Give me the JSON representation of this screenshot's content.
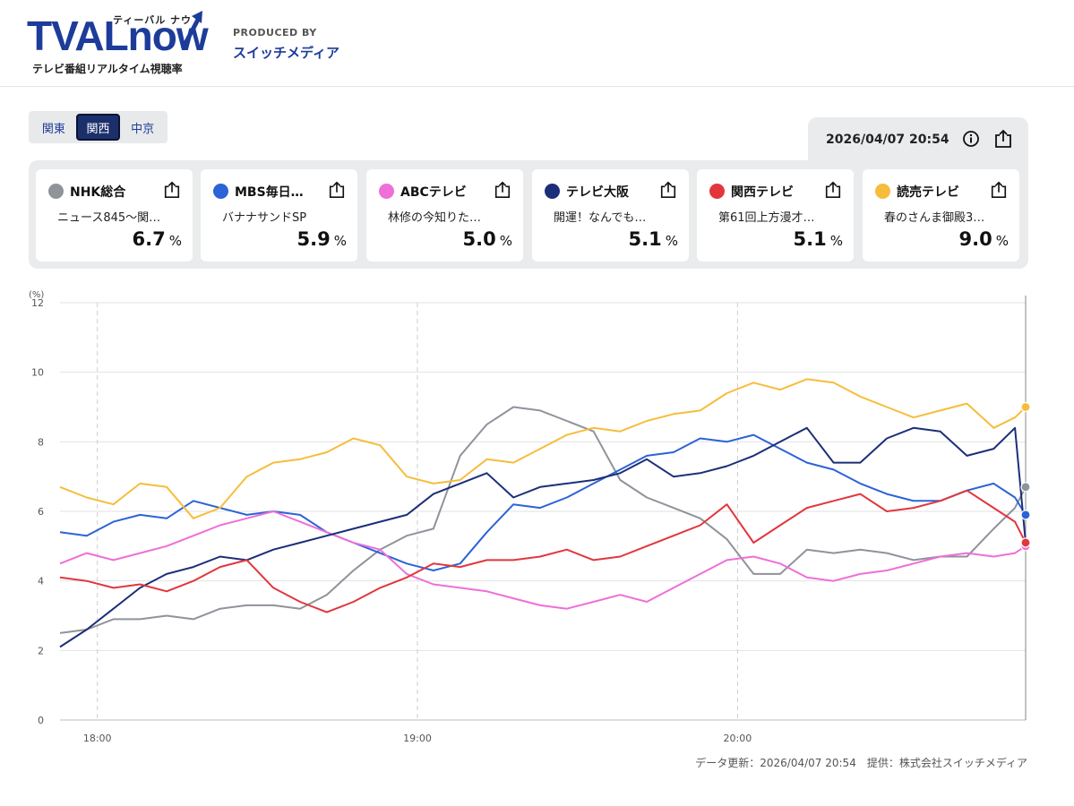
{
  "logo": {
    "main": "TVALnow",
    "kana": "ティーバル ナウ",
    "tagline": "テレビ番組リアルタイム視聴率"
  },
  "produced": {
    "label": "PRODUCED BY",
    "name": "スイッチメディア"
  },
  "regions": [
    "関東",
    "関西",
    "中京"
  ],
  "active_region": "関西",
  "timestamp": "2026/04/07 20:54",
  "stations": [
    {
      "name": "NHK総合",
      "program": "ニュース845〜関…",
      "rating": "6.7",
      "unit": "%",
      "color": "#8f939a"
    },
    {
      "name": "MBS毎日…",
      "program": "バナナサンドSP",
      "rating": "5.9",
      "unit": "%",
      "color": "#2c63d6"
    },
    {
      "name": "ABCテレビ",
      "program": "林修の今知りた…",
      "rating": "5.0",
      "unit": "%",
      "color": "#ee6fd8"
    },
    {
      "name": "テレビ大阪",
      "program": "開運！なんでも…",
      "rating": "5.1",
      "unit": "%",
      "color": "#1b2f78"
    },
    {
      "name": "関西テレビ",
      "program": "第61回上方漫才…",
      "rating": "5.1",
      "unit": "%",
      "color": "#e2363d"
    },
    {
      "name": "読売テレビ",
      "program": "春のさんま御殿3…",
      "rating": "9.0",
      "unit": "%",
      "color": "#f6bd3c"
    }
  ],
  "chart_data": {
    "type": "line",
    "ylabel": "(%)",
    "ylim": [
      0,
      12
    ],
    "yticks": [
      0,
      2,
      4,
      6,
      8,
      10,
      12
    ],
    "xlim": [
      "17:53",
      "20:54"
    ],
    "xticks": [
      "18:00",
      "19:00",
      "20:00"
    ],
    "grid": true,
    "x": [
      "17:53",
      "17:58",
      "18:03",
      "18:08",
      "18:13",
      "18:18",
      "18:23",
      "18:28",
      "18:33",
      "18:38",
      "18:43",
      "18:48",
      "18:53",
      "18:58",
      "19:03",
      "19:08",
      "19:13",
      "19:18",
      "19:23",
      "19:28",
      "19:33",
      "19:38",
      "19:43",
      "19:48",
      "19:53",
      "19:58",
      "20:03",
      "20:08",
      "20:13",
      "20:18",
      "20:23",
      "20:28",
      "20:33",
      "20:38",
      "20:43",
      "20:48",
      "20:52",
      "20:54"
    ],
    "series": [
      {
        "name": "NHK総合",
        "color": "#8f939a",
        "values": [
          2.5,
          2.6,
          2.9,
          2.9,
          3.0,
          2.9,
          3.2,
          3.3,
          3.3,
          3.2,
          3.6,
          4.3,
          4.9,
          5.3,
          5.5,
          7.6,
          8.5,
          9.0,
          8.9,
          8.6,
          8.3,
          6.9,
          6.4,
          6.1,
          5.8,
          5.2,
          4.2,
          4.2,
          4.9,
          4.8,
          4.9,
          4.8,
          4.6,
          4.7,
          4.7,
          5.5,
          6.1,
          6.7
        ]
      },
      {
        "name": "MBS毎日…",
        "color": "#2c63d6",
        "values": [
          5.4,
          5.3,
          5.7,
          5.9,
          5.8,
          6.3,
          6.1,
          5.9,
          6.0,
          5.9,
          5.4,
          5.1,
          4.8,
          4.5,
          4.3,
          4.5,
          5.4,
          6.2,
          6.1,
          6.4,
          6.8,
          7.2,
          7.6,
          7.7,
          8.1,
          8.0,
          8.2,
          7.8,
          7.4,
          7.2,
          6.8,
          6.5,
          6.3,
          6.3,
          6.6,
          6.8,
          6.4,
          5.9
        ]
      },
      {
        "name": "ABCテレビ",
        "color": "#ee6fd8",
        "values": [
          4.5,
          4.8,
          4.6,
          4.8,
          5.0,
          5.3,
          5.6,
          5.8,
          6.0,
          5.7,
          5.4,
          5.1,
          4.9,
          4.2,
          3.9,
          3.8,
          3.7,
          3.5,
          3.3,
          3.2,
          3.4,
          3.6,
          3.4,
          3.8,
          4.2,
          4.6,
          4.7,
          4.5,
          4.1,
          4.0,
          4.2,
          4.3,
          4.5,
          4.7,
          4.8,
          4.7,
          4.8,
          5.0
        ]
      },
      {
        "name": "テレビ大阪",
        "color": "#1b2f78",
        "values": [
          2.1,
          2.6,
          3.2,
          3.8,
          4.2,
          4.4,
          4.7,
          4.6,
          4.9,
          5.1,
          5.3,
          5.5,
          5.7,
          5.9,
          6.5,
          6.8,
          7.1,
          6.4,
          6.7,
          6.8,
          6.9,
          7.1,
          7.5,
          7.0,
          7.1,
          7.3,
          7.6,
          8.0,
          8.4,
          7.4,
          7.4,
          8.1,
          8.4,
          8.3,
          7.6,
          7.8,
          8.4,
          5.1
        ]
      },
      {
        "name": "関西テレビ",
        "color": "#e2363d",
        "values": [
          4.1,
          4.0,
          3.8,
          3.9,
          3.7,
          4.0,
          4.4,
          4.6,
          3.8,
          3.4,
          3.1,
          3.4,
          3.8,
          4.1,
          4.5,
          4.4,
          4.6,
          4.6,
          4.7,
          4.9,
          4.6,
          4.7,
          5.0,
          5.3,
          5.6,
          6.2,
          5.1,
          5.6,
          6.1,
          6.3,
          6.5,
          6.0,
          6.1,
          6.3,
          6.6,
          6.1,
          5.7,
          5.1
        ]
      },
      {
        "name": "読売テレビ",
        "color": "#f6bd3c",
        "values": [
          6.7,
          6.4,
          6.2,
          6.8,
          6.7,
          5.8,
          6.1,
          7.0,
          7.4,
          7.5,
          7.7,
          8.1,
          7.9,
          7.0,
          6.8,
          6.9,
          7.5,
          7.4,
          7.8,
          8.2,
          8.4,
          8.3,
          8.6,
          8.8,
          8.9,
          9.4,
          9.7,
          9.5,
          9.8,
          9.7,
          9.3,
          9.0,
          8.7,
          8.9,
          9.1,
          8.4,
          8.7,
          9.0
        ]
      }
    ]
  },
  "footer": "データ更新：2026/04/07 20:54　提供：株式会社スイッチメディア"
}
